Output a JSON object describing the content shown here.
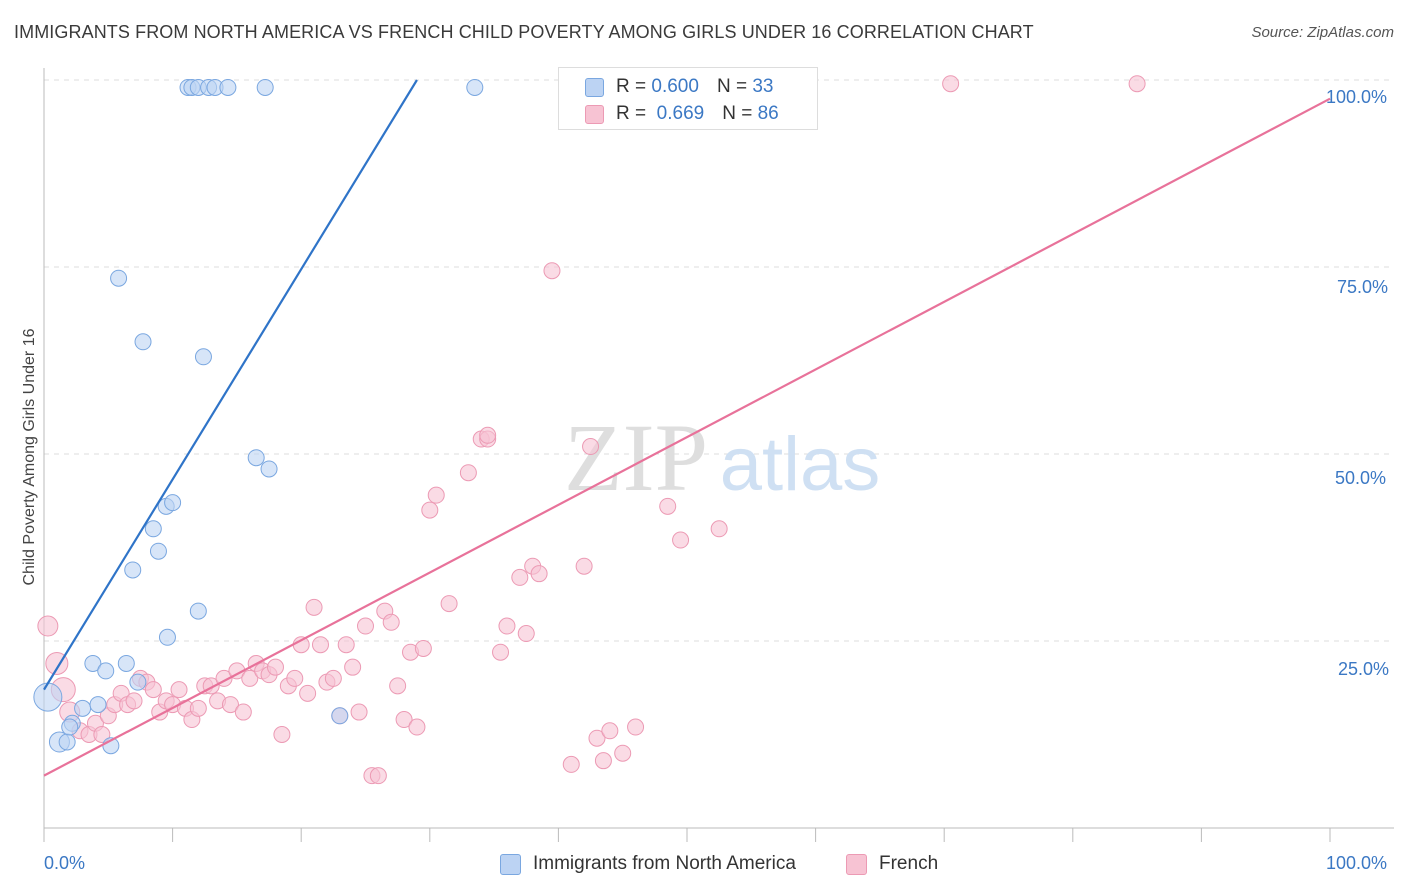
{
  "title": "IMMIGRANTS FROM NORTH AMERICA VS FRENCH CHILD POVERTY AMONG GIRLS UNDER 16 CORRELATION CHART",
  "source": "Source: ZipAtlas.com",
  "watermark": {
    "zip": "ZIP",
    "atlas": "atlas"
  },
  "colors": {
    "blue_fill": "#bcd3f3",
    "blue_stroke": "#7aa7e0",
    "blue_line": "#2f74c8",
    "pink_fill": "#f7c3d3",
    "pink_stroke": "#ec9ab4",
    "pink_line": "#e8729a",
    "tick_text": "#3b78c4",
    "grid": "#dddddd"
  },
  "legend_top": [
    {
      "r_label": "R =",
      "r_value": "0.600",
      "n_label": "N =",
      "n_value": "33"
    },
    {
      "r_label": "R =",
      "r_value": "0.669",
      "n_label": "N =",
      "n_value": "86"
    }
  ],
  "chart_data": {
    "type": "scatter",
    "title": "IMMIGRANTS FROM NORTH AMERICA VS FRENCH CHILD POVERTY AMONG GIRLS UNDER 16 CORRELATION CHART",
    "xlabel": "",
    "ylabel": "Child Poverty Among Girls Under 16",
    "x_tick_labels": [
      "0.0%",
      "100.0%"
    ],
    "y_tick_labels": [
      "25.0%",
      "50.0%",
      "75.0%",
      "100.0%"
    ],
    "xlim": [
      0,
      100
    ],
    "ylim": [
      0,
      100
    ],
    "grid": true,
    "legend_position": "bottom",
    "series": [
      {
        "name": "Immigrants from North America",
        "color": "#bcd3f3",
        "r": 0.6,
        "n": 33,
        "trend": [
          [
            0,
            18.5
          ],
          [
            29,
            100
          ]
        ],
        "points": [
          [
            0.3,
            17.5,
            14
          ],
          [
            1.2,
            11.5,
            10
          ],
          [
            1.8,
            11.5,
            8
          ],
          [
            2.2,
            14,
            8
          ],
          [
            3.0,
            16,
            8
          ],
          [
            3.8,
            22,
            8
          ],
          [
            4.2,
            16.5,
            8
          ],
          [
            4.8,
            21,
            8
          ],
          [
            5.2,
            11,
            8
          ],
          [
            6.4,
            22,
            8
          ],
          [
            6.9,
            34.5,
            8
          ],
          [
            7.3,
            19.5,
            8
          ],
          [
            7.7,
            65,
            8
          ],
          [
            8.5,
            40,
            8
          ],
          [
            8.9,
            37,
            8
          ],
          [
            9.5,
            43,
            8
          ],
          [
            9.6,
            25.5,
            8
          ],
          [
            10,
            43.5,
            8
          ],
          [
            11.2,
            99,
            8
          ],
          [
            11.5,
            99,
            8
          ],
          [
            12.0,
            99,
            8
          ],
          [
            12.0,
            29,
            8
          ],
          [
            12.4,
            63,
            8
          ],
          [
            12.8,
            99,
            8
          ],
          [
            13.3,
            99,
            8
          ],
          [
            14.3,
            99,
            8
          ],
          [
            16.5,
            49.5,
            8
          ],
          [
            17.5,
            48,
            8
          ],
          [
            17.2,
            99,
            8
          ],
          [
            23.0,
            15,
            8
          ],
          [
            33.5,
            99,
            8
          ],
          [
            5.8,
            73.5,
            8
          ],
          [
            2.0,
            13.5,
            8
          ]
        ]
      },
      {
        "name": "French",
        "color": "#f7c3d3",
        "r": 0.669,
        "n": 86,
        "trend": [
          [
            0,
            7
          ],
          [
            100,
            97.5
          ]
        ],
        "points": [
          [
            0.3,
            27,
            10
          ],
          [
            1.0,
            22,
            11
          ],
          [
            1.5,
            18.5,
            12
          ],
          [
            2.0,
            15.5,
            10
          ],
          [
            2.8,
            13,
            8
          ],
          [
            3.5,
            12.5,
            8
          ],
          [
            4.0,
            14,
            8
          ],
          [
            4.5,
            12.5,
            8
          ],
          [
            5.0,
            15,
            8
          ],
          [
            5.5,
            16.5,
            8
          ],
          [
            6.0,
            18,
            8
          ],
          [
            6.5,
            16.5,
            8
          ],
          [
            7.0,
            17,
            8
          ],
          [
            7.5,
            20,
            8
          ],
          [
            8.0,
            19.5,
            8
          ],
          [
            8.5,
            18.5,
            8
          ],
          [
            9.0,
            15.5,
            8
          ],
          [
            9.5,
            17,
            8
          ],
          [
            10.0,
            16.5,
            8
          ],
          [
            10.5,
            18.5,
            8
          ],
          [
            11.0,
            16,
            8
          ],
          [
            11.5,
            14.5,
            8
          ],
          [
            12.0,
            16,
            8
          ],
          [
            12.5,
            19,
            8
          ],
          [
            13.0,
            19,
            8
          ],
          [
            13.5,
            17,
            8
          ],
          [
            14.0,
            20,
            8
          ],
          [
            14.5,
            16.5,
            8
          ],
          [
            15.0,
            21,
            8
          ],
          [
            15.5,
            15.5,
            8
          ],
          [
            16.0,
            20,
            8
          ],
          [
            16.5,
            22,
            8
          ],
          [
            17.0,
            21,
            8
          ],
          [
            17.5,
            20.5,
            8
          ],
          [
            18.0,
            21.5,
            8
          ],
          [
            18.5,
            12.5,
            8
          ],
          [
            19.0,
            19,
            8
          ],
          [
            19.5,
            20,
            8
          ],
          [
            20.0,
            24.5,
            8
          ],
          [
            20.5,
            18,
            8
          ],
          [
            21.0,
            29.5,
            8
          ],
          [
            21.5,
            24.5,
            8
          ],
          [
            22.0,
            19.5,
            8
          ],
          [
            22.5,
            20,
            8
          ],
          [
            23.0,
            15,
            8
          ],
          [
            23.5,
            24.5,
            8
          ],
          [
            24.0,
            21.5,
            8
          ],
          [
            24.5,
            15.5,
            8
          ],
          [
            25.0,
            27,
            8
          ],
          [
            25.5,
            7,
            8
          ],
          [
            26.0,
            7,
            8
          ],
          [
            26.5,
            29,
            8
          ],
          [
            27.0,
            27.5,
            8
          ],
          [
            27.5,
            19,
            8
          ],
          [
            28.0,
            14.5,
            8
          ],
          [
            28.5,
            23.5,
            8
          ],
          [
            29.0,
            13.5,
            8
          ],
          [
            29.5,
            24,
            8
          ],
          [
            30.0,
            42.5,
            8
          ],
          [
            30.5,
            44.5,
            8
          ],
          [
            31.5,
            30,
            8
          ],
          [
            33.0,
            47.5,
            8
          ],
          [
            34.0,
            52,
            8
          ],
          [
            34.5,
            52,
            8
          ],
          [
            35.5,
            23.5,
            8
          ],
          [
            36.0,
            27,
            8
          ],
          [
            37.0,
            33.5,
            8
          ],
          [
            37.5,
            26,
            8
          ],
          [
            38.0,
            35,
            8
          ],
          [
            38.5,
            34,
            8
          ],
          [
            39.5,
            74.5,
            8
          ],
          [
            41.0,
            8.5,
            8
          ],
          [
            42.0,
            35,
            8
          ],
          [
            42.5,
            51,
            8
          ],
          [
            43.0,
            12,
            8
          ],
          [
            43.5,
            9,
            8
          ],
          [
            44.0,
            13,
            8
          ],
          [
            45.0,
            10,
            8
          ],
          [
            46.0,
            13.5,
            8
          ],
          [
            47.0,
            99.5,
            8
          ],
          [
            48.5,
            43,
            8
          ],
          [
            49.5,
            38.5,
            8
          ],
          [
            52.5,
            40,
            8
          ],
          [
            70.5,
            99.5,
            8
          ],
          [
            85.0,
            99.5,
            8
          ],
          [
            34.5,
            52.5,
            8
          ]
        ]
      }
    ]
  }
}
